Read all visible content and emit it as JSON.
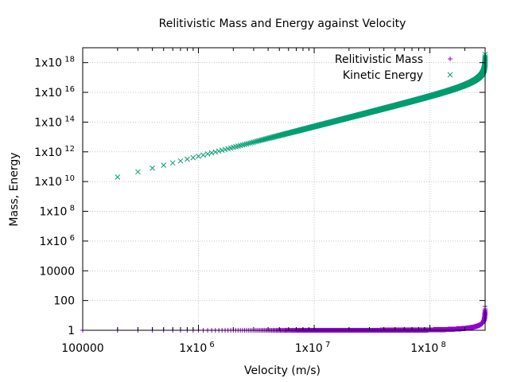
{
  "chart_data": {
    "type": "scatter",
    "title": "Relitivistic Mass and Energy against Velocity",
    "xlabel": "Velocity (m/s)",
    "ylabel": "Mass, Energy",
    "xscale": "log",
    "yscale": "log",
    "xlim": [
      100000,
      300000000
    ],
    "ylim": [
      1,
      1e+19
    ],
    "grid": true,
    "legend": "top-right",
    "colors": {
      "mass": "#9400d3",
      "energy": "#009e73"
    },
    "xticks": [
      {
        "value": 100000,
        "base": "100000",
        "sup": ""
      },
      {
        "value": 1000000,
        "base": "1x10",
        "sup": "6"
      },
      {
        "value": 10000000,
        "base": "1x10",
        "sup": "7"
      },
      {
        "value": 100000000,
        "base": "1x10",
        "sup": "8"
      }
    ],
    "yticks": [
      {
        "value": 1,
        "base": "1",
        "sup": ""
      },
      {
        "value": 100,
        "base": "100",
        "sup": ""
      },
      {
        "value": 10000,
        "base": "10000",
        "sup": ""
      },
      {
        "value": 1000000,
        "base": "1x10",
        "sup": "6"
      },
      {
        "value": 100000000,
        "base": "1x10",
        "sup": "8"
      },
      {
        "value": 10000000000,
        "base": "1x10",
        "sup": "10"
      },
      {
        "value": 1000000000000,
        "base": "1x10",
        "sup": "12"
      },
      {
        "value": 100000000000000,
        "base": "1x10",
        "sup": "14"
      },
      {
        "value": 10000000000000000,
        "base": "1x10",
        "sup": "16"
      },
      {
        "value": 1000000000000000000,
        "base": "1x10",
        "sup": "18"
      }
    ],
    "series": [
      {
        "name": "Relitivistic Mass",
        "marker": "plus",
        "rest_mass": 1,
        "speed_of_light": 299792458,
        "v_start": 100000,
        "v_step": 100000
      },
      {
        "name": "Kinetic Energy",
        "marker": "cross",
        "rest_mass": 1,
        "speed_of_light": 299792458,
        "v_start": 200000,
        "v_step": 100000
      }
    ]
  }
}
